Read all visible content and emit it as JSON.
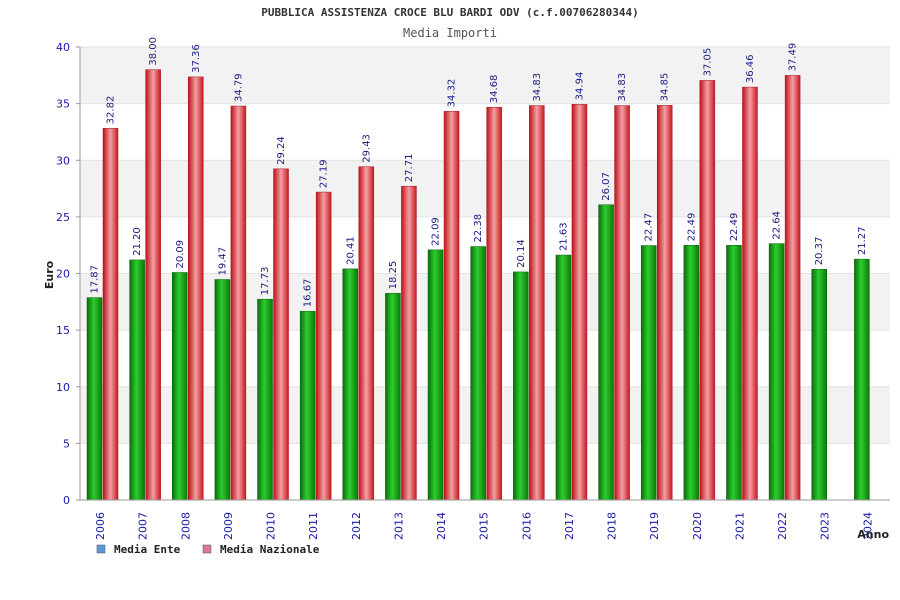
{
  "chart_data": {
    "type": "bar",
    "title": "PUBBLICA ASSISTENZA CROCE BLU BARDI ODV (c.f.00706280344)",
    "subtitle": "Media Importi",
    "xlabel": "Anno",
    "ylabel": "Euro",
    "ylim": [
      0,
      40
    ],
    "yticks": [
      0,
      5,
      10,
      15,
      20,
      25,
      30,
      35,
      40
    ],
    "categories": [
      "2006",
      "2007",
      "2008",
      "2009",
      "2010",
      "2011",
      "2012",
      "2013",
      "2014",
      "2015",
      "2016",
      "2017",
      "2018",
      "2019",
      "2020",
      "2021",
      "2022",
      "2023",
      "2024"
    ],
    "series": [
      {
        "name": "Media Ente",
        "legend_color": "#5b9bd5",
        "bar_color": "#1faa1f",
        "values": [
          17.87,
          21.2,
          20.09,
          19.47,
          17.73,
          16.67,
          20.41,
          18.25,
          22.09,
          22.38,
          20.14,
          21.63,
          26.07,
          22.47,
          22.49,
          22.49,
          22.64,
          20.37,
          21.27
        ],
        "labels": [
          "17.87",
          "21.20",
          "20.09",
          "19.47",
          "17.73",
          "16.67",
          "20.41",
          "18.25",
          "22.09",
          "22.38",
          "20.14",
          "21.63",
          "26.07",
          "22.47",
          "22.49",
          "22.49",
          "22.64",
          "20.37",
          "21.27"
        ]
      },
      {
        "name": "Media Nazionale",
        "legend_color": "#d9779e",
        "bar_color": "#e8222a",
        "values": [
          32.82,
          38.0,
          37.36,
          34.79,
          29.24,
          27.19,
          29.43,
          27.71,
          34.32,
          34.68,
          34.83,
          34.94,
          34.83,
          34.85,
          37.05,
          36.46,
          37.49,
          null,
          null
        ],
        "labels": [
          "32.82",
          "38.00",
          "37.36",
          "34.79",
          "29.24",
          "27.19",
          "29.43",
          "27.71",
          "34.32",
          "34.68",
          "34.83",
          "34.94",
          "34.83",
          "34.85",
          "37.05",
          "36.46",
          "37.49",
          "",
          ""
        ]
      }
    ],
    "grid": true,
    "legend_position": "bottom-left"
  }
}
